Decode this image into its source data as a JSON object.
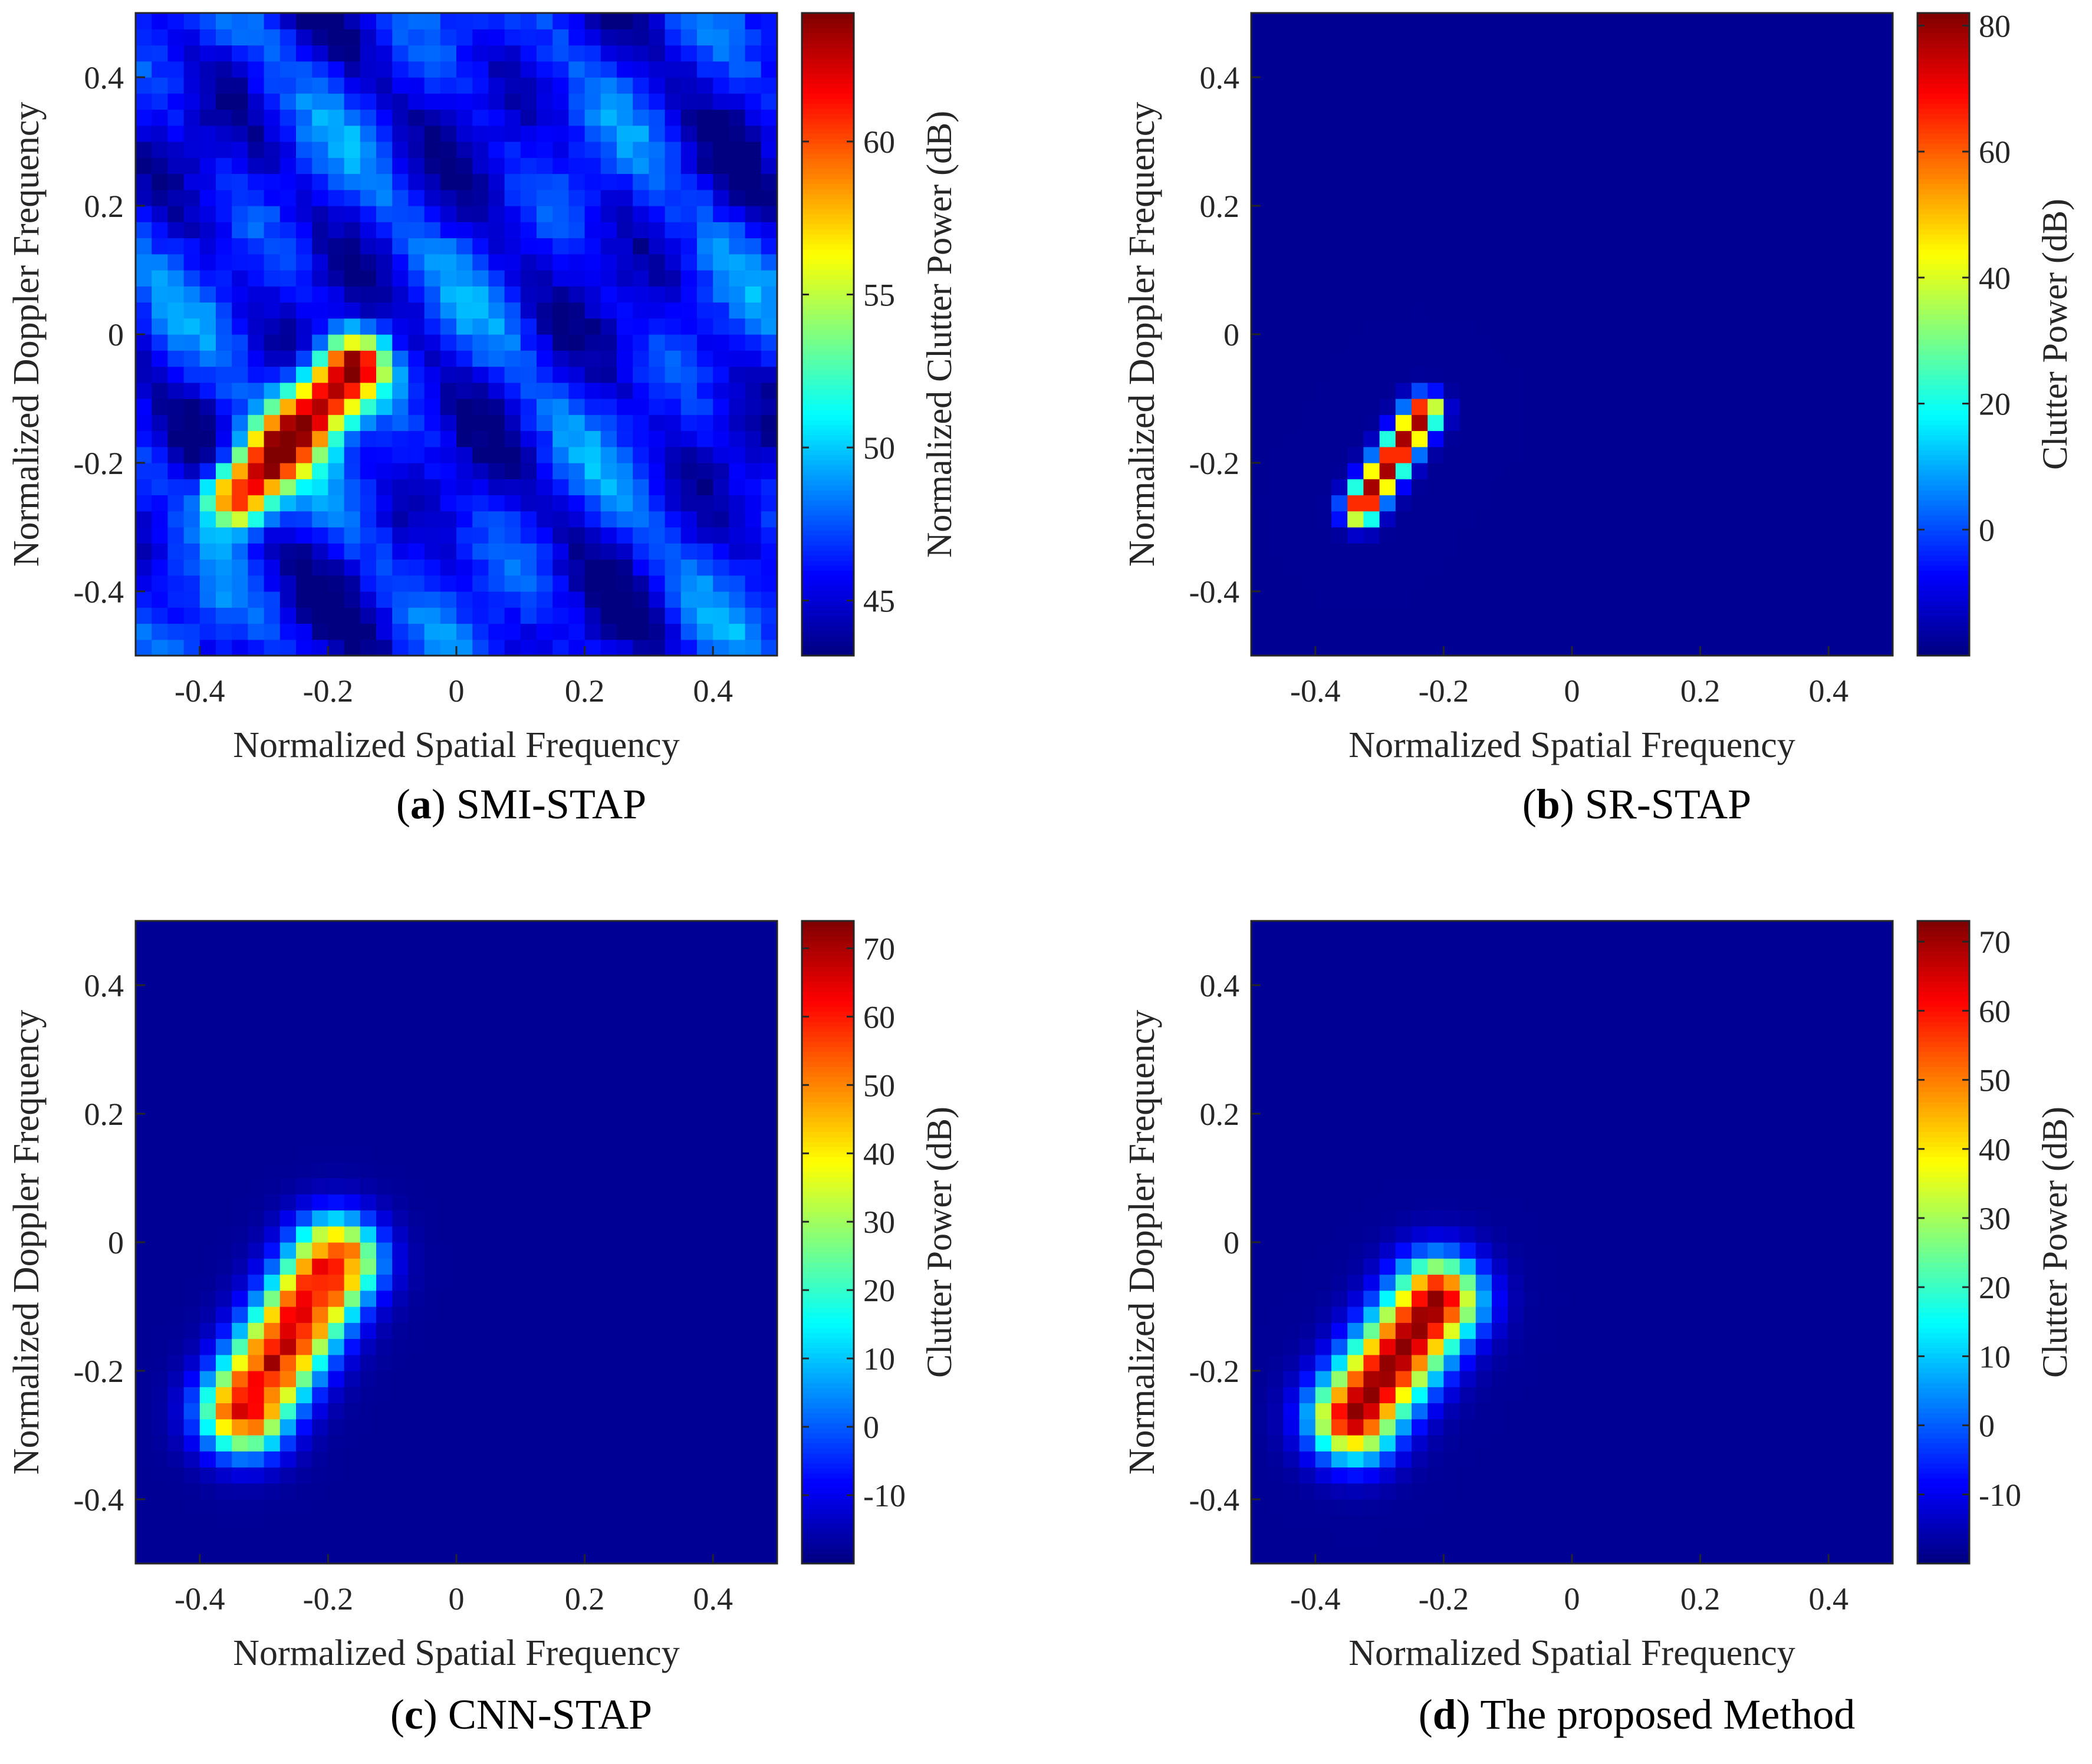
{
  "chart_data": [
    {
      "type": "heatmap",
      "caption_letter": "a",
      "caption_text": "SMI-STAP",
      "xlabel": "Normalized Spatial Frequency",
      "ylabel": "Normalized Doppler Frequency",
      "colorbar_label": "Normalized Clutter Power (dB)",
      "xlim": [
        -0.5,
        0.5
      ],
      "ylim": [
        -0.5,
        0.5
      ],
      "xticks": [
        -0.4,
        -0.2,
        0,
        0.2,
        0.4
      ],
      "xtick_labels": [
        "-0.4",
        "-0.2",
        "0",
        "0.2",
        "0.4"
      ],
      "yticks": [
        -0.4,
        -0.2,
        0,
        0.2,
        0.4
      ],
      "ytick_labels": [
        "-0.4",
        "-0.2",
        "0",
        "0.2",
        "0.4"
      ],
      "clim": [
        43.2,
        64.2
      ],
      "colorbar_ticks": [
        45,
        50,
        55,
        60
      ],
      "colorbar_tick_labels": [
        "45",
        "50",
        "55",
        "60"
      ],
      "grid_size": 40,
      "ridge": {
        "x_start": -0.34,
        "x_end": -0.16,
        "y_start": -0.25,
        "y_end": -0.05
      },
      "background_level": 46,
      "peak_level": 64
    },
    {
      "type": "heatmap",
      "caption_letter": "b",
      "caption_text": "SR-STAP",
      "xlabel": "Normalized Spatial Frequency",
      "ylabel": "Normalized Doppler Frequency",
      "colorbar_label": "Clutter Power (dB)",
      "xlim": [
        -0.5,
        0.5
      ],
      "ylim": [
        -0.5,
        0.5
      ],
      "xticks": [
        -0.4,
        -0.2,
        0,
        0.2,
        0.4
      ],
      "xtick_labels": [
        "-0.4",
        "-0.2",
        "0",
        "0.2",
        "0.4"
      ],
      "yticks": [
        -0.4,
        -0.2,
        0,
        0.2,
        0.4
      ],
      "ytick_labels": [
        "-0.4",
        "-0.2",
        "0",
        "0.2",
        "0.4"
      ],
      "clim": [
        -20,
        82
      ],
      "colorbar_ticks": [
        0,
        20,
        40,
        60,
        80
      ],
      "colorbar_tick_labels": [
        "0",
        "20",
        "40",
        "60",
        "80"
      ],
      "grid_size": 40,
      "ridge": {
        "x_start": -0.33,
        "x_end": -0.23,
        "y_start": -0.27,
        "y_end": -0.12
      },
      "background_level": -18,
      "peak_level": 80
    },
    {
      "type": "heatmap",
      "caption_letter": "c",
      "caption_text": "CNN-STAP",
      "xlabel": "Normalized Spatial Frequency",
      "ylabel": "Normalized Doppler Frequency",
      "colorbar_label": "Clutter Power (dB)",
      "xlim": [
        -0.5,
        0.5
      ],
      "ylim": [
        -0.5,
        0.5
      ],
      "xticks": [
        -0.4,
        -0.2,
        0,
        0.2,
        0.4
      ],
      "xtick_labels": [
        "-0.4",
        "-0.2",
        "0",
        "0.2",
        "0.4"
      ],
      "yticks": [
        -0.4,
        -0.2,
        0,
        0.2,
        0.4
      ],
      "ytick_labels": [
        "-0.4",
        "-0.2",
        "0",
        "0.2",
        "0.4"
      ],
      "clim": [
        -20,
        74
      ],
      "colorbar_ticks": [
        -10,
        0,
        10,
        20,
        30,
        40,
        50,
        60,
        70
      ],
      "colorbar_tick_labels": [
        "-10",
        "0",
        "10",
        "20",
        "30",
        "40",
        "50",
        "60",
        "70"
      ],
      "grid_size": 40,
      "ridge": {
        "x_start": -0.33,
        "x_end": -0.19,
        "y_start": -0.26,
        "y_end": -0.03
      },
      "background_level": -18,
      "peak_level": 72
    },
    {
      "type": "heatmap",
      "caption_letter": "d",
      "caption_text": "The proposed Method",
      "xlabel": "Normalized Spatial Frequency",
      "ylabel": "Normalized Doppler Frequency",
      "colorbar_label": "Clutter Power (dB)",
      "xlim": [
        -0.5,
        0.5
      ],
      "ylim": [
        -0.5,
        0.5
      ],
      "xticks": [
        -0.4,
        -0.2,
        0,
        0.2,
        0.4
      ],
      "xtick_labels": [
        "-0.4",
        "-0.2",
        "0",
        "0.2",
        "0.4"
      ],
      "yticks": [
        -0.4,
        -0.2,
        0,
        0.2,
        0.4
      ],
      "ytick_labels": [
        "-0.4",
        "-0.2",
        "0",
        "0.2",
        "0.4"
      ],
      "clim": [
        -20,
        73
      ],
      "colorbar_ticks": [
        -10,
        0,
        10,
        20,
        30,
        40,
        50,
        60,
        70
      ],
      "colorbar_tick_labels": [
        "-10",
        "0",
        "10",
        "20",
        "30",
        "40",
        "50",
        "60",
        "70"
      ],
      "grid_size": 40,
      "ridge": {
        "x_start": -0.34,
        "x_end": -0.21,
        "y_start": -0.27,
        "y_end": -0.09
      },
      "background_level": -18,
      "peak_level": 72
    }
  ]
}
